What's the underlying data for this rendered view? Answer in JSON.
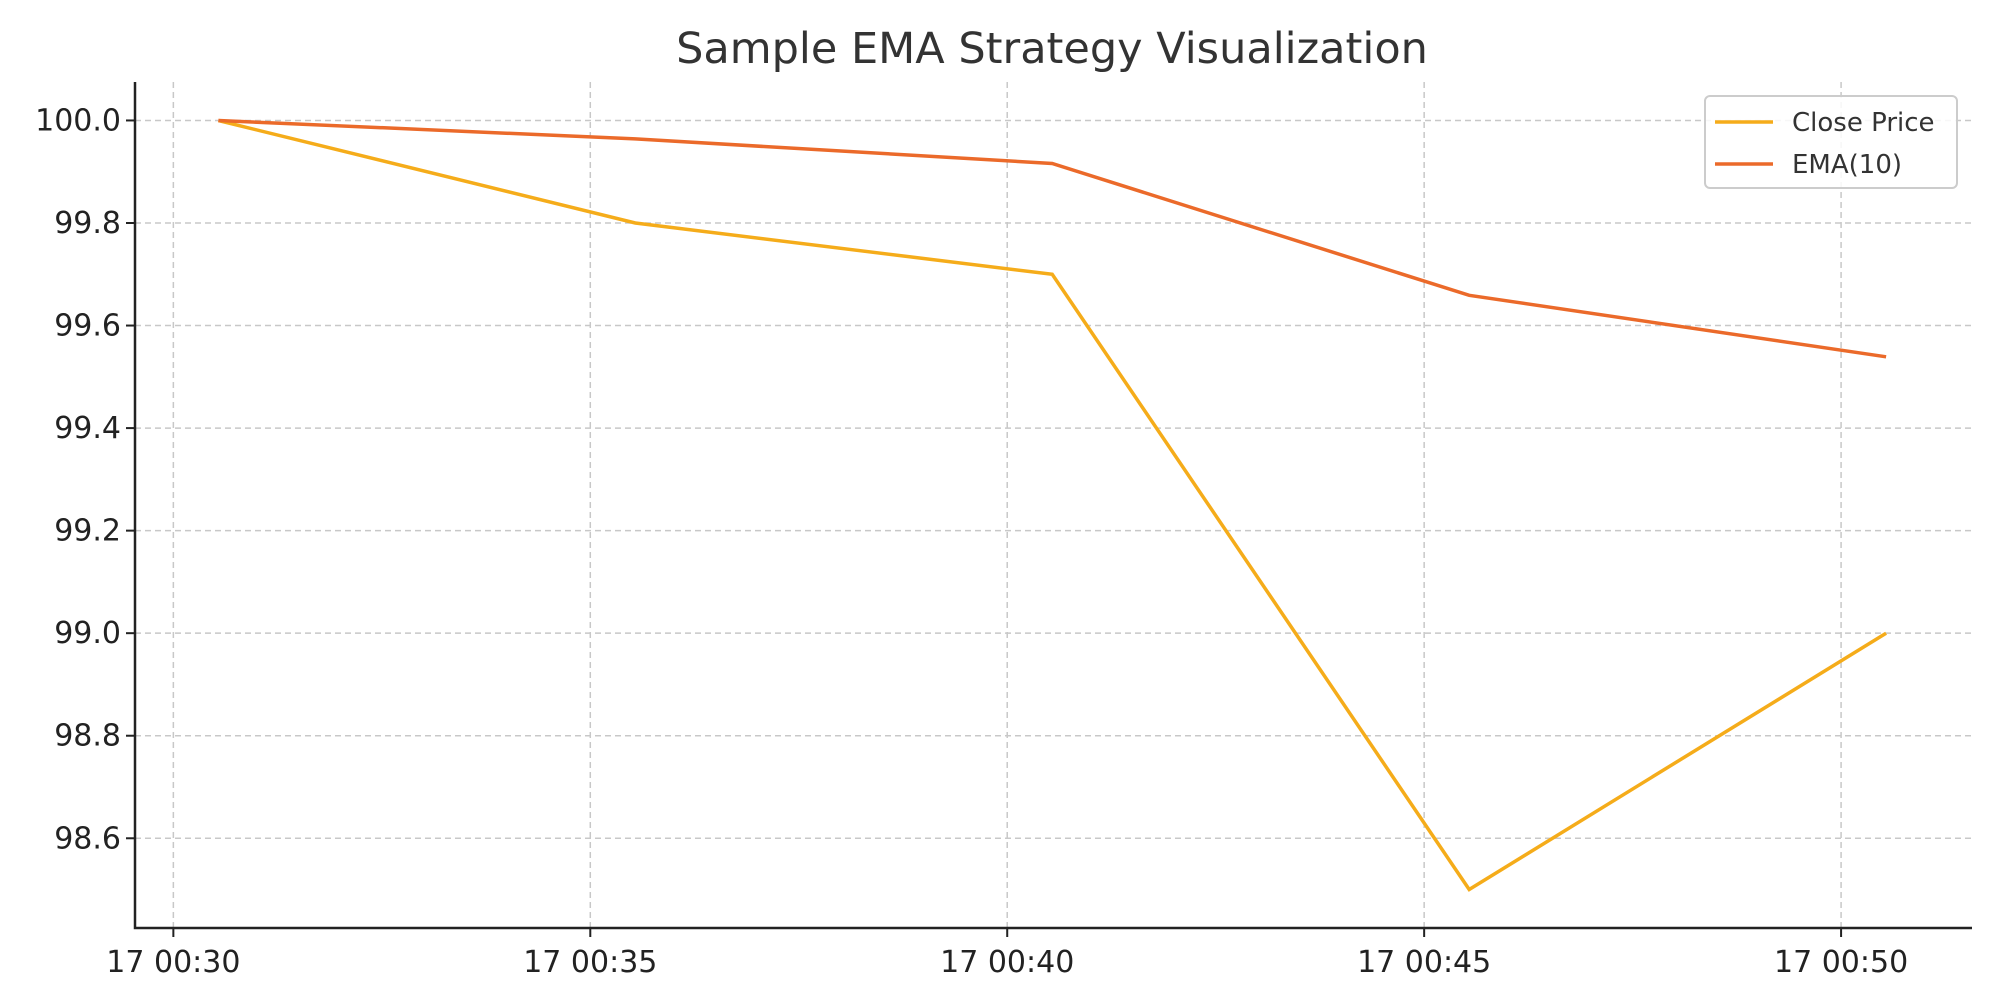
{
  "chart_data": {
    "type": "line",
    "title": "Sample EMA Strategy Visualization",
    "xlabel": "",
    "ylabel": "",
    "x_unit": "minutes",
    "x_ticks": [
      {
        "value": 30,
        "label": "17 00:30"
      },
      {
        "value": 35,
        "label": "17 00:35"
      },
      {
        "value": 40,
        "label": "17 00:40"
      },
      {
        "value": 45,
        "label": "17 00:45"
      },
      {
        "value": 50,
        "label": "17 00:50"
      }
    ],
    "y_ticks": [
      98.6,
      98.8,
      99.0,
      99.2,
      99.4,
      99.6,
      99.8,
      100.0
    ],
    "xlim": [
      29.54,
      51.57
    ],
    "ylim": [
      98.425,
      100.075
    ],
    "grid": true,
    "legend_position": "top-right",
    "x": [
      30.54,
      35.54,
      40.54,
      45.54,
      50.54
    ],
    "series": [
      {
        "name": "Close Price",
        "color": "#f5ac1a",
        "values": [
          100.0,
          99.8,
          99.7,
          98.5,
          99.0
        ]
      },
      {
        "name": "EMA(10)",
        "color": "#eb6a2a",
        "values": [
          100.0,
          99.964,
          99.916,
          99.659,
          99.539
        ]
      }
    ]
  }
}
